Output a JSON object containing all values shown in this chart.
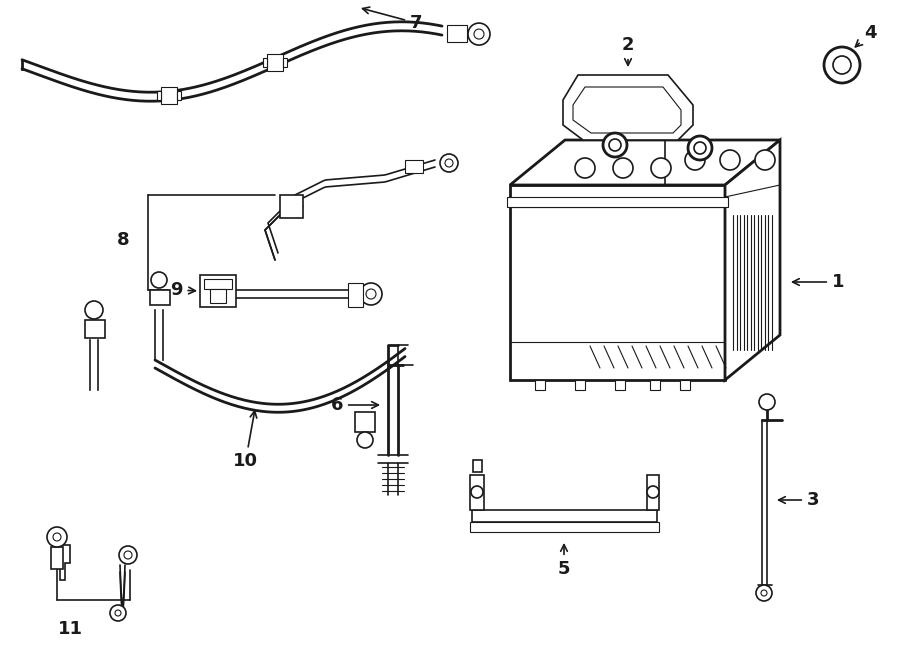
{
  "background_color": "#ffffff",
  "line_color": "#1a1a1a",
  "lw_thick": 2.0,
  "lw_thin": 1.2,
  "lw_hair": 0.8
}
